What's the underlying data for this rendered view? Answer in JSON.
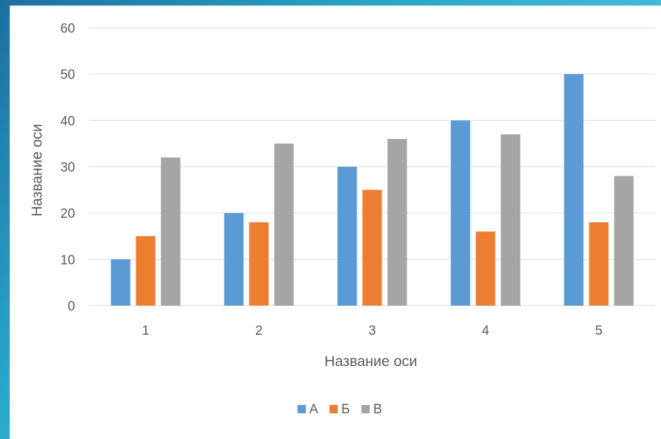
{
  "chart_data": {
    "type": "bar",
    "categories": [
      "1",
      "2",
      "3",
      "4",
      "5"
    ],
    "series": [
      {
        "name": "А",
        "color": "#5b9bd5",
        "values": [
          10,
          20,
          30,
          40,
          50
        ]
      },
      {
        "name": "Б",
        "color": "#ed7d31",
        "values": [
          15,
          18,
          25,
          16,
          18
        ]
      },
      {
        "name": "В",
        "color": "#a5a5a5",
        "values": [
          32,
          35,
          36,
          37,
          28
        ]
      }
    ],
    "xlabel": "Название оси",
    "ylabel": "Название оси",
    "ylim": [
      0,
      60
    ],
    "yticks": [
      0,
      10,
      20,
      30,
      40,
      50,
      60
    ],
    "grid": true,
    "legend_position": "bottom"
  },
  "colors": {
    "gridline": "#d9d9d9",
    "text": "#595959"
  }
}
